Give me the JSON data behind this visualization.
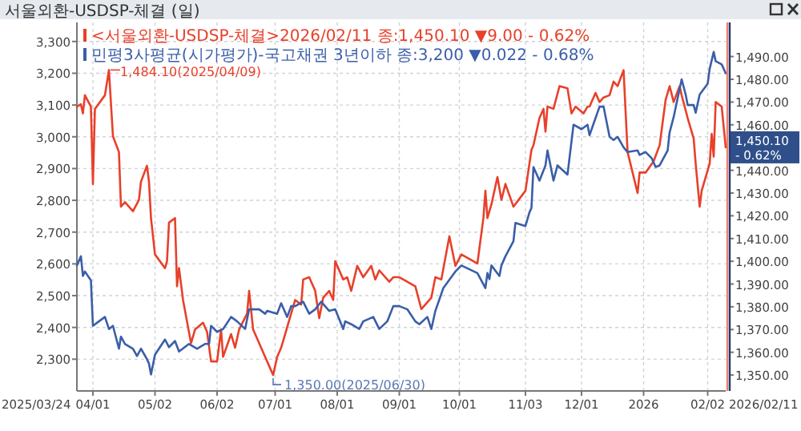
{
  "chart_data": {
    "type": "line",
    "title": "서울외환-USDSP-체결 (일)",
    "xlim": [
      "2025-03-24",
      "2026-02-11"
    ],
    "xticks": [
      {
        "value": "2025-04-01",
        "label": "04/01"
      },
      {
        "value": "2025-05-02",
        "label": "05/02"
      },
      {
        "value": "2025-06-02",
        "label": "06/02"
      },
      {
        "value": "2025-07-01",
        "label": "07/01"
      },
      {
        "value": "2025-08-01",
        "label": "08/01"
      },
      {
        "value": "2025-09-01",
        "label": "09/01"
      },
      {
        "value": "2025-10-01",
        "label": "10/01"
      },
      {
        "value": "2025-11-03",
        "label": "11/03"
      },
      {
        "value": "2025-12-01",
        "label": "12/01"
      },
      {
        "value": "2026-01-01",
        "label": "2026"
      },
      {
        "value": "2026-02-02",
        "label": "02/02"
      }
    ],
    "ylim": [
      2200,
      3360
    ],
    "yticks": [
      {
        "value": 2300,
        "label": "2,300"
      },
      {
        "value": 2400,
        "label": "2,400"
      },
      {
        "value": 2500,
        "label": "2,500"
      },
      {
        "value": 2600,
        "label": "2,600"
      },
      {
        "value": 2700,
        "label": "2,700"
      },
      {
        "value": 2800,
        "label": "2,800"
      },
      {
        "value": 2900,
        "label": "2,900"
      },
      {
        "value": 3000,
        "label": "3,000"
      },
      {
        "value": 3100,
        "label": "3,100"
      },
      {
        "value": 3200,
        "label": "3,200"
      },
      {
        "value": 3300,
        "label": "3,300"
      }
    ],
    "y2lim": [
      1343,
      1505
    ],
    "y2ticks": [
      {
        "value": 1350,
        "label": "1,350.00"
      },
      {
        "value": 1360,
        "label": "1,360.00"
      },
      {
        "value": 1370,
        "label": "1,370.00"
      },
      {
        "value": 1380,
        "label": "1,380.00"
      },
      {
        "value": 1390,
        "label": "1,390.00"
      },
      {
        "value": 1400,
        "label": "1,400.00"
      },
      {
        "value": 1410,
        "label": "1,410.00"
      },
      {
        "value": 1420,
        "label": "1,420.00"
      },
      {
        "value": 1430,
        "label": "1,430.00"
      },
      {
        "value": 1440,
        "label": "1,440.00"
      },
      {
        "value": 1450,
        "label": null
      },
      {
        "value": 1460,
        "label": "1,460.00"
      },
      {
        "value": 1470,
        "label": "1,470.00"
      },
      {
        "value": 1480,
        "label": "1,480.00"
      },
      {
        "value": 1490,
        "label": "1,490.00"
      }
    ],
    "grid": true,
    "legend": "top left",
    "line_style": "solid",
    "annotations": [
      "2025/03/24",
      "2026/02/11",
      "1,484.10(2025/04/09)",
      "1,350.00(2025/06/30)",
      "1,450.10\n- 0.62%"
    ],
    "series": [
      {
        "name": "<서울외환-USDSP-체결>2026/02/11 종:1,450.10  ▼9.00  - 0.62%",
        "color": "#e8402a",
        "axis": "y2",
        "x": [
          "2025-03-24",
          "2025-03-26",
          "2025-03-27",
          "2025-03-28",
          "2025-03-31",
          "2025-04-01",
          "2025-04-02",
          "2025-04-07",
          "2025-04-09",
          "2025-04-11",
          "2025-04-14",
          "2025-04-15",
          "2025-04-17",
          "2025-04-21",
          "2025-04-24",
          "2025-04-25",
          "2025-04-28",
          "2025-04-29",
          "2025-04-30",
          "2025-05-02",
          "2025-05-07",
          "2025-05-08",
          "2025-05-09",
          "2025-05-12",
          "2025-05-13",
          "2025-05-14",
          "2025-05-16",
          "2025-05-20",
          "2025-05-22",
          "2025-05-26",
          "2025-05-28",
          "2025-05-30",
          "2025-06-02",
          "2025-06-04",
          "2025-06-05",
          "2025-06-09",
          "2025-06-11",
          "2025-06-13",
          "2025-06-17",
          "2025-06-18",
          "2025-06-20",
          "2025-06-24",
          "2025-06-26",
          "2025-06-30",
          "2025-07-02",
          "2025-07-04",
          "2025-07-09",
          "2025-07-11",
          "2025-07-14",
          "2025-07-15",
          "2025-07-18",
          "2025-07-21",
          "2025-07-23",
          "2025-07-25",
          "2025-07-28",
          "2025-07-30",
          "2025-07-31",
          "2025-08-04",
          "2025-08-06",
          "2025-08-08",
          "2025-08-11",
          "2025-08-14",
          "2025-08-18",
          "2025-08-20",
          "2025-08-22",
          "2025-08-27",
          "2025-08-29",
          "2025-09-01",
          "2025-09-09",
          "2025-09-12",
          "2025-09-17",
          "2025-09-19",
          "2025-09-22",
          "2025-09-26",
          "2025-09-29",
          "2025-10-02",
          "2025-10-10",
          "2025-10-13",
          "2025-10-14",
          "2025-10-15",
          "2025-10-17",
          "2025-10-20",
          "2025-10-22",
          "2025-10-24",
          "2025-10-28",
          "2025-11-03",
          "2025-11-06",
          "2025-11-07",
          "2025-11-10",
          "2025-11-12",
          "2025-11-13",
          "2025-11-14",
          "2025-11-17",
          "2025-11-20",
          "2025-11-24",
          "2025-11-26",
          "2025-11-28",
          "2025-12-02",
          "2025-12-04",
          "2025-12-05",
          "2025-12-08",
          "2025-12-10",
          "2025-12-12",
          "2025-12-15",
          "2025-12-17",
          "2025-12-19",
          "2025-12-22",
          "2025-12-24",
          "2025-12-29",
          "2025-12-30",
          "2026-01-02",
          "2026-01-06",
          "2026-01-09",
          "2026-01-12",
          "2026-01-14",
          "2026-01-16",
          "2026-01-19",
          "2026-01-20",
          "2026-01-23",
          "2026-01-26",
          "2026-01-27",
          "2026-01-29",
          "2026-01-30",
          "2026-02-03",
          "2026-02-04",
          "2026-02-05",
          "2026-02-06",
          "2026-02-09",
          "2026-02-10",
          "2026-02-11"
        ],
        "values": [
          1468,
          1469,
          1465,
          1473,
          1468,
          1434,
          1467,
          1473,
          1484.1,
          1455,
          1448,
          1424,
          1426,
          1422,
          1427,
          1435,
          1442,
          1435,
          1419,
          1403,
          1397,
          1400,
          1417,
          1419,
          1389,
          1397,
          1383,
          1364,
          1370,
          1373,
          1369,
          1356,
          1356,
          1370,
          1358,
          1368,
          1362,
          1370,
          1377,
          1387,
          1370,
          1362,
          1358,
          1350,
          1358,
          1362,
          1377,
          1383,
          1381,
          1392,
          1393,
          1387,
          1375,
          1384,
          1387,
          1383,
          1400,
          1392,
          1393,
          1387,
          1398,
          1393,
          1398,
          1392,
          1396,
          1391,
          1393,
          1393,
          1389,
          1379,
          1384,
          1393,
          1392,
          1411,
          1398,
          1403,
          1399,
          1419,
          1431,
          1419,
          1425,
          1437,
          1427,
          1434,
          1424,
          1431,
          1449,
          1451,
          1463,
          1467,
          1457,
          1468,
          1467,
          1477,
          1476,
          1465,
          1468,
          1465,
          1468,
          1468,
          1474,
          1470,
          1472,
          1473,
          1479,
          1477,
          1484,
          1448,
          1430,
          1439,
          1439,
          1444,
          1451,
          1471,
          1477,
          1470,
          1477,
          1473,
          1463,
          1454,
          1443,
          1424,
          1431,
          1443,
          1456,
          1446,
          1470,
          1468,
          1459,
          1450.1
        ]
      },
      {
        "name": "민평3사평균(시가평가)-국고채권 3년이하 종:3,200  ▼0.022  - 0.68%",
        "color": "#3a5ea8",
        "x": [
          "2025-03-24",
          "2025-03-26",
          "2025-03-27",
          "2025-03-28",
          "2025-03-31",
          "2025-04-01",
          "2025-04-04",
          "2025-04-07",
          "2025-04-09",
          "2025-04-11",
          "2025-04-14",
          "2025-04-15",
          "2025-04-17",
          "2025-04-21",
          "2025-04-23",
          "2025-04-25",
          "2025-04-28",
          "2025-04-29",
          "2025-04-30",
          "2025-05-02",
          "2025-05-07",
          "2025-05-09",
          "2025-05-12",
          "2025-05-14",
          "2025-05-19",
          "2025-05-23",
          "2025-05-27",
          "2025-05-29",
          "2025-05-30",
          "2025-06-02",
          "2025-06-05",
          "2025-06-09",
          "2025-06-12",
          "2025-06-16",
          "2025-06-18",
          "2025-06-23",
          "2025-06-26",
          "2025-06-27",
          "2025-07-02",
          "2025-07-04",
          "2025-07-07",
          "2025-07-09",
          "2025-07-11",
          "2025-07-15",
          "2025-07-18",
          "2025-07-21",
          "2025-07-24",
          "2025-07-28",
          "2025-07-31",
          "2025-08-04",
          "2025-08-05",
          "2025-08-08",
          "2025-08-12",
          "2025-08-14",
          "2025-08-19",
          "2025-08-22",
          "2025-08-26",
          "2025-08-29",
          "2025-09-01",
          "2025-09-05",
          "2025-09-09",
          "2025-09-11",
          "2025-09-15",
          "2025-09-17",
          "2025-09-19",
          "2025-09-23",
          "2025-09-29",
          "2025-10-02",
          "2025-10-10",
          "2025-10-14",
          "2025-10-15",
          "2025-10-16",
          "2025-10-17",
          "2025-10-21",
          "2025-10-22",
          "2025-10-24",
          "2025-10-28",
          "2025-10-29",
          "2025-11-03",
          "2025-11-05",
          "2025-11-06",
          "2025-11-07",
          "2025-11-10",
          "2025-11-13",
          "2025-11-14",
          "2025-11-17",
          "2025-11-19",
          "2025-11-24",
          "2025-11-27",
          "2025-12-01",
          "2025-12-04",
          "2025-12-05",
          "2025-12-10",
          "2025-12-12",
          "2025-12-15",
          "2025-12-17",
          "2025-12-19",
          "2025-12-22",
          "2025-12-24",
          "2025-12-29",
          "2025-12-30",
          "2026-01-02",
          "2026-01-05",
          "2026-01-07",
          "2026-01-09",
          "2026-01-13",
          "2026-01-14",
          "2026-01-16",
          "2026-01-20",
          "2026-01-22",
          "2026-01-23",
          "2026-01-26",
          "2026-01-27",
          "2026-01-29",
          "2026-02-02",
          "2026-02-03",
          "2026-02-05",
          "2026-02-06",
          "2026-02-09",
          "2026-02-11"
        ],
        "values": [
          2595,
          2624,
          2562,
          2576,
          2548,
          2405,
          2419,
          2433,
          2395,
          2405,
          2333,
          2371,
          2348,
          2333,
          2310,
          2333,
          2300,
          2286,
          2252,
          2314,
          2362,
          2338,
          2357,
          2324,
          2348,
          2333,
          2348,
          2348,
          2405,
          2386,
          2395,
          2433,
          2419,
          2395,
          2457,
          2457,
          2443,
          2452,
          2443,
          2476,
          2433,
          2467,
          2467,
          2481,
          2443,
          2457,
          2481,
          2452,
          2457,
          2395,
          2419,
          2410,
          2395,
          2419,
          2433,
          2395,
          2419,
          2467,
          2467,
          2457,
          2419,
          2410,
          2433,
          2395,
          2452,
          2524,
          2576,
          2595,
          2571,
          2524,
          2571,
          2552,
          2595,
          2562,
          2595,
          2624,
          2671,
          2729,
          2719,
          2762,
          2776,
          2905,
          2862,
          2910,
          2957,
          2862,
          2910,
          2881,
          3038,
          3024,
          3038,
          3005,
          3095,
          3095,
          3000,
          2990,
          3000,
          2967,
          2952,
          2957,
          2943,
          2952,
          2933,
          2905,
          2910,
          2957,
          3014,
          3062,
          3181,
          3133,
          3100,
          3100,
          3076,
          3133,
          3167,
          3214,
          3267,
          3238,
          3228,
          3200
        ]
      }
    ]
  }
}
